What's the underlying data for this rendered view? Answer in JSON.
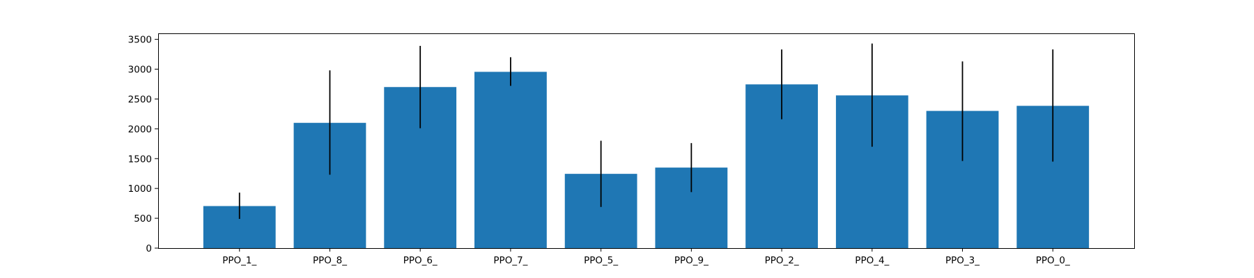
{
  "chart_data": {
    "type": "bar",
    "categories": [
      "PPO_1_",
      "PPO_8_",
      "PPO_6_",
      "PPO_7_",
      "PPO_5_",
      "PPO_9_",
      "PPO_2_",
      "PPO_4_",
      "PPO_3_",
      "PPO_0_"
    ],
    "values": [
      705,
      2100,
      2700,
      2955,
      1245,
      1350,
      2745,
      2560,
      2300,
      2385
    ],
    "error_low": [
      490,
      1230,
      2010,
      2720,
      690,
      940,
      2160,
      1700,
      1460,
      1450
    ],
    "error_high": [
      930,
      2980,
      3390,
      3200,
      1800,
      1760,
      3330,
      3430,
      3130,
      3330
    ],
    "title": "",
    "xlabel": "",
    "ylabel": "",
    "ylim": [
      0,
      3600
    ],
    "yticks": [
      0,
      500,
      1000,
      1500,
      2000,
      2500,
      3000,
      3500
    ],
    "grid": false,
    "bar_color": "#1f77b4",
    "error_color": "#000000"
  }
}
